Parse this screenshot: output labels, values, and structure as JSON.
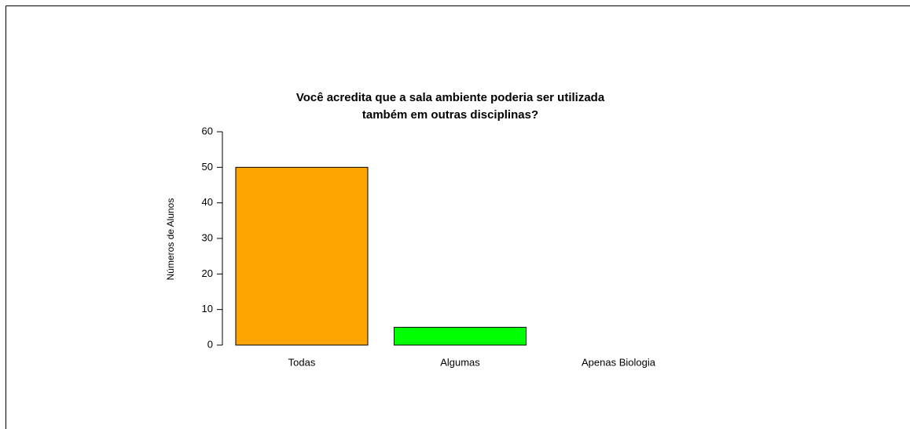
{
  "chart_data": {
    "type": "bar",
    "title": [
      "Você acredita que a sala ambiente poderia ser utilizada",
      "também em outras disciplinas?"
    ],
    "y_label": "Números de Alunos",
    "categories": [
      "Todas",
      "Algumas",
      "Apenas Biologia"
    ],
    "values": [
      50,
      5,
      0
    ],
    "colors": [
      "#ffa500",
      "#00ff00"
    ],
    "ylim": [
      0,
      60
    ],
    "yticks": [
      0,
      10,
      20,
      30,
      40,
      50,
      60
    ]
  }
}
